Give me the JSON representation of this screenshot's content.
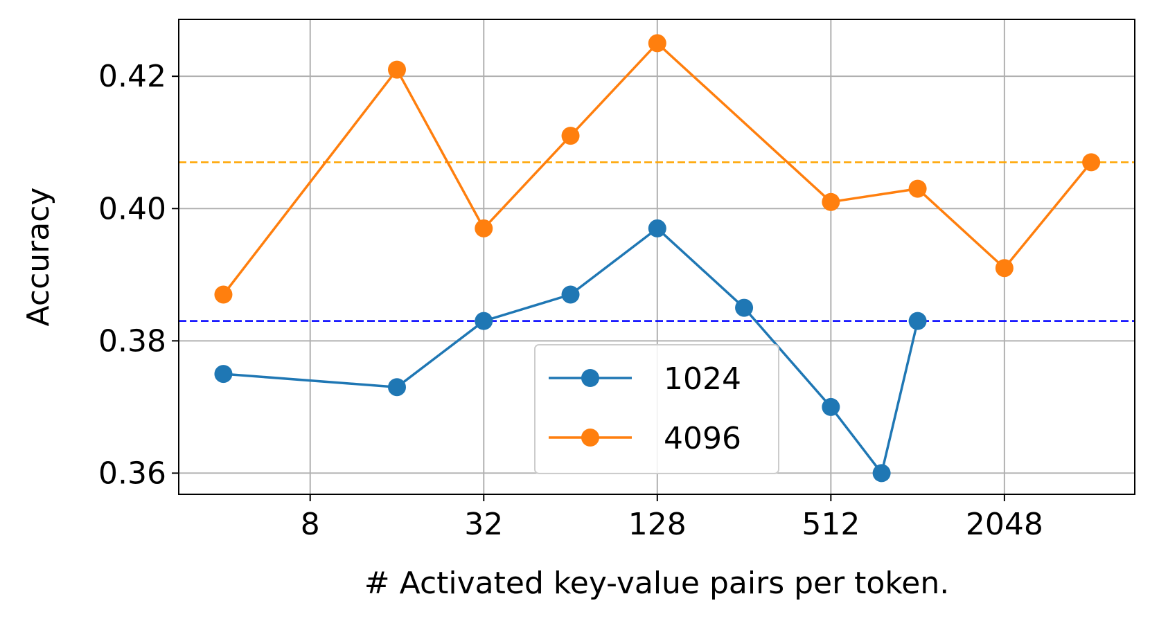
{
  "chart_data": {
    "type": "line",
    "title": "",
    "xlabel": "# Activated key-value pairs per token.",
    "ylabel": "Accuracy",
    "x_scale": "log2",
    "xlim": [
      2.8,
      5800
    ],
    "ylim": [
      0.3568,
      0.4286
    ],
    "x_ticks": [
      8,
      32,
      128,
      512,
      2048
    ],
    "x_tick_labels": [
      "8",
      "32",
      "128",
      "512",
      "2048"
    ],
    "y_ticks": [
      0.36,
      0.38,
      0.4,
      0.42
    ],
    "y_tick_labels": [
      "0.36",
      "0.38",
      "0.40",
      "0.42"
    ],
    "grid": true,
    "legend_position": "bottom-center",
    "series": [
      {
        "name": "1024",
        "color": "#1f77b4",
        "marker": "circle",
        "x": [
          4,
          16,
          32,
          64,
          128,
          256,
          512,
          768,
          1024
        ],
        "y": [
          0.375,
          0.373,
          0.383,
          0.387,
          0.397,
          0.385,
          0.37,
          0.36,
          0.383
        ]
      },
      {
        "name": "4096",
        "color": "#ff7f0e",
        "marker": "circle",
        "x": [
          4,
          16,
          32,
          64,
          128,
          512,
          1024,
          2048,
          4096
        ],
        "y": [
          0.387,
          0.421,
          0.397,
          0.411,
          0.425,
          0.401,
          0.403,
          0.391,
          0.407
        ]
      }
    ],
    "reference_lines": [
      {
        "y": 0.407,
        "color": "#ffa500",
        "style": "dashed"
      },
      {
        "y": 0.383,
        "color": "#0000ff",
        "style": "dashed"
      }
    ]
  }
}
